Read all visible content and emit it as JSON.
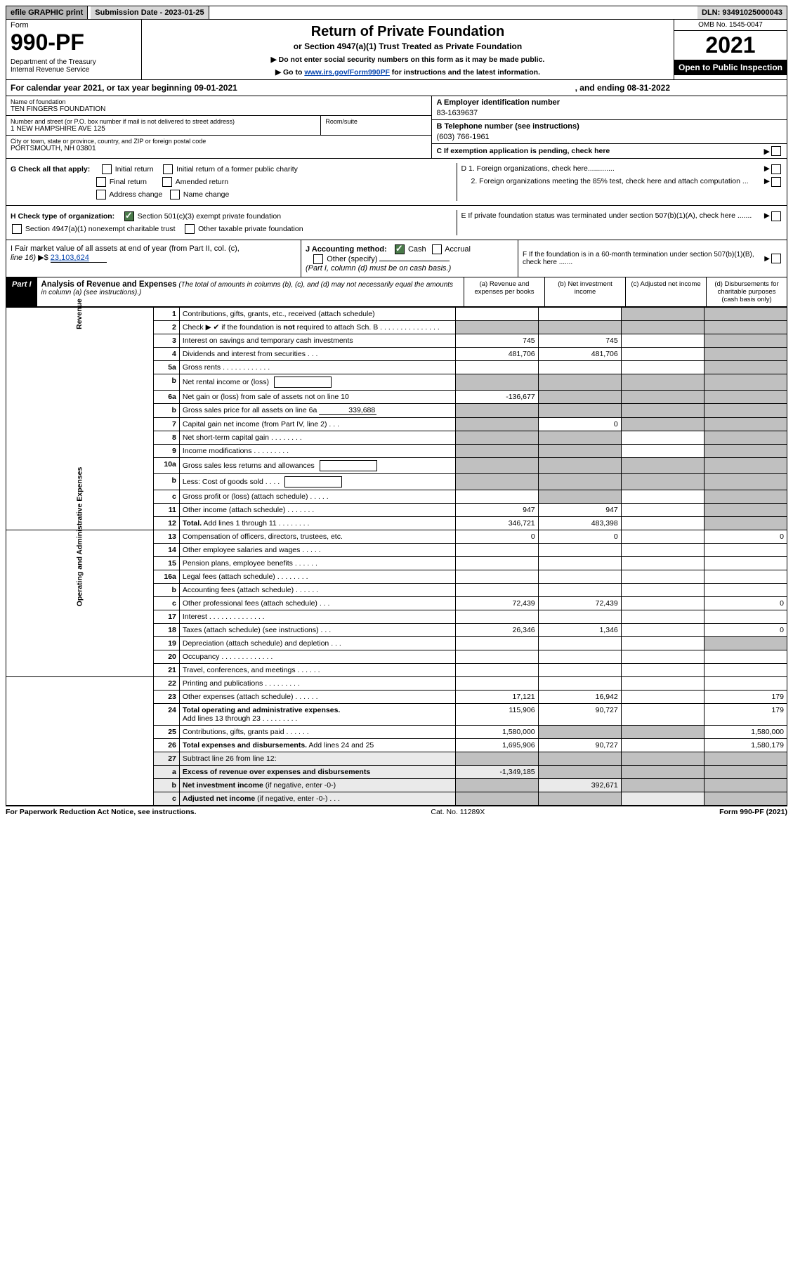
{
  "header_bar": {
    "efile": "efile GRAPHIC print",
    "sub": "Submission Date - 2023-01-25",
    "dln": "DLN: 93491025000043"
  },
  "form_box": {
    "form_word": "Form",
    "code": "990-PF",
    "dept": "Department of the Treasury",
    "irs": "Internal Revenue Service"
  },
  "title": {
    "main": "Return of Private Foundation",
    "sub": "or Section 4947(a)(1) Trust Treated as Private Foundation",
    "instr1": "▶ Do not enter social security numbers on this form as it may be made public.",
    "instr2_pre": "▶ Go to ",
    "instr2_link": "www.irs.gov/Form990PF",
    "instr2_post": " for instructions and the latest information."
  },
  "year_box": {
    "omb": "OMB No. 1545-0047",
    "yr": "2021",
    "open": "Open to Public Inspection"
  },
  "cal": {
    "pre": "For calendar year 2021, or tax year beginning 09-01-2021",
    "mid": ", and ending 08-31-2022"
  },
  "A": {
    "lbl": "Name of foundation",
    "val": "TEN FINGERS FOUNDATION",
    "ein_lbl": "A Employer identification number",
    "ein": "83-1639637"
  },
  "B": {
    "addr_lbl": "Number and street (or P.O. box number if mail is not delivered to street address)",
    "addr": "1 NEW HAMPSHIRE AVE 125",
    "room_lbl": "Room/suite",
    "tel_lbl": "B Telephone number (see instructions)",
    "tel": "(603) 766-1961"
  },
  "C": {
    "city_lbl": "City or town, state or province, country, and ZIP or foreign postal code",
    "city": "PORTSMOUTH, NH  03801",
    "c_lbl": "C If exemption application is pending, check here"
  },
  "G": {
    "lbl": "G Check all that apply:",
    "opts": [
      "Initial return",
      "Final return",
      "Address change",
      "Initial return of a former public charity",
      "Amended return",
      "Name change"
    ]
  },
  "D": {
    "d1": "D 1. Foreign organizations, check here.............",
    "d2": "2. Foreign organizations meeting the 85% test, check here and attach computation ..."
  },
  "E": {
    "lbl": "E  If private foundation status was terminated under section 507(b)(1)(A), check here ......."
  },
  "H": {
    "lbl": "H Check type of organization:",
    "o1": "Section 501(c)(3) exempt private foundation",
    "o2": "Section 4947(a)(1) nonexempt charitable trust",
    "o3": "Other taxable private foundation"
  },
  "I": {
    "lbl": "I Fair market value of all assets at end of year (from Part II, col. (c),",
    "line": "line 16)",
    "arrow": "▶$",
    "val": "23,103,624"
  },
  "J": {
    "lbl": "J Accounting method:",
    "cash": "Cash",
    "accr": "Accrual",
    "other": "Other (specify)",
    "note": "(Part I, column (d) must be on cash basis.)"
  },
  "F": {
    "lbl": "F  If the foundation is in a 60-month termination under section 507(b)(1)(B), check here ......."
  },
  "part1": {
    "lbl": "Part I",
    "title": "Analysis of Revenue and Expenses",
    "note": "(The total of amounts in columns (b), (c), and (d) may not necessarily equal the amounts in column (a) (see instructions).)",
    "cols": {
      "a": "(a)    Revenue and expenses per books",
      "b": "(b)    Net investment income",
      "c": "(c)    Adjusted net income",
      "d": "(d)    Disbursements for charitable purposes (cash basis only)"
    }
  },
  "vtabs": {
    "rev": "Revenue",
    "exp": "Operating and Administrative Expenses"
  },
  "rows": [
    {
      "n": "1",
      "t": "Contributions, gifts, grants, etc., received (attach schedule)",
      "a": "",
      "b": "",
      "c": "g",
      "d": "g"
    },
    {
      "n": "2",
      "t": "Check ▶ ✔ if the foundation is <b>not</b> required to attach Sch. B      .   .   .   .   .   .   .   .   .   .   .   .   .   .   .",
      "a": "g",
      "b": "g",
      "c": "g",
      "d": "g"
    },
    {
      "n": "3",
      "t": "Interest on savings and temporary cash investments",
      "a": "745",
      "b": "745",
      "c": "",
      "d": "g"
    },
    {
      "n": "4",
      "t": "Dividends and interest from securities    .   .   .",
      "a": "481,706",
      "b": "481,706",
      "c": "",
      "d": "g"
    },
    {
      "n": "5a",
      "t": "Gross rents      .   .   .   .   .   .   .   .   .   .   .   .",
      "a": "",
      "b": "",
      "c": "",
      "d": "g"
    },
    {
      "n": "b",
      "t": "Net rental income or (loss) <span class='smallbox'></span>",
      "a": "g",
      "b": "g",
      "c": "g",
      "d": "g"
    },
    {
      "n": "6a",
      "t": "Net gain or (loss) from sale of assets not on line 10",
      "a": "-136,677",
      "b": "g",
      "c": "g",
      "d": "g"
    },
    {
      "n": "b",
      "t": "Gross sales price for all assets on line 6a <span class='underline-val' style='text-align:right;padding-right:2px'>339,688</span>",
      "a": "g",
      "b": "g",
      "c": "g",
      "d": "g"
    },
    {
      "n": "7",
      "t": "Capital gain net income (from Part IV, line 2)    .   .   .",
      "a": "g",
      "b": "0",
      "c": "g",
      "d": "g"
    },
    {
      "n": "8",
      "t": "Net short-term capital gain   .   .   .   .   .   .   .   .",
      "a": "g",
      "b": "g",
      "c": "",
      "d": "g"
    },
    {
      "n": "9",
      "t": "Income modifications   .   .   .   .   .   .   .   .   .",
      "a": "g",
      "b": "g",
      "c": "",
      "d": "g"
    },
    {
      "n": "10a",
      "t": "Gross sales less returns and allowances <span class='smallbox'></span>",
      "a": "g",
      "b": "g",
      "c": "g",
      "d": "g"
    },
    {
      "n": "b",
      "t": "Less: Cost of goods sold    .   .   .   . <span class='smallbox'></span>",
      "a": "g",
      "b": "g",
      "c": "g",
      "d": "g"
    },
    {
      "n": "c",
      "t": "Gross profit or (loss) (attach schedule)    .   .   .   .   .",
      "a": "",
      "b": "g",
      "c": "",
      "d": "g"
    },
    {
      "n": "11",
      "t": "Other income (attach schedule)    .   .   .   .   .   .   .",
      "a": "947",
      "b": "947",
      "c": "",
      "d": "g"
    },
    {
      "n": "12",
      "t": "<b>Total.</b> Add lines 1 through 11   .   .   .   .   .   .   .   .",
      "a": "346,721",
      "b": "483,398",
      "c": "",
      "d": "g"
    },
    {
      "n": "13",
      "t": "Compensation of officers, directors, trustees, etc.",
      "a": "0",
      "b": "0",
      "c": "",
      "d": "0"
    },
    {
      "n": "14",
      "t": "Other employee salaries and wages    .   .   .   .   .",
      "a": "",
      "b": "",
      "c": "",
      "d": ""
    },
    {
      "n": "15",
      "t": "Pension plans, employee benefits   .   .   .   .   .   .",
      "a": "",
      "b": "",
      "c": "",
      "d": ""
    },
    {
      "n": "16a",
      "t": "Legal fees (attach schedule)  .   .   .   .   .   .   .   .",
      "a": "",
      "b": "",
      "c": "",
      "d": ""
    },
    {
      "n": "b",
      "t": "Accounting fees (attach schedule)   .   .   .   .   .   .",
      "a": "",
      "b": "",
      "c": "",
      "d": ""
    },
    {
      "n": "c",
      "t": "Other professional fees (attach schedule)    .   .   .",
      "a": "72,439",
      "b": "72,439",
      "c": "",
      "d": "0"
    },
    {
      "n": "17",
      "t": "Interest  .   .   .   .   .   .   .   .   .   .   .   .   .   .",
      "a": "",
      "b": "",
      "c": "",
      "d": ""
    },
    {
      "n": "18",
      "t": "Taxes (attach schedule) (see instructions)    .   .   .",
      "a": "26,346",
      "b": "1,346",
      "c": "",
      "d": "0"
    },
    {
      "n": "19",
      "t": "Depreciation (attach schedule) and depletion    .   .   .",
      "a": "",
      "b": "",
      "c": "",
      "d": "g"
    },
    {
      "n": "20",
      "t": "Occupancy  .   .   .   .   .   .   .   .   .   .   .   .   .",
      "a": "",
      "b": "",
      "c": "",
      "d": ""
    },
    {
      "n": "21",
      "t": "Travel, conferences, and meetings   .   .   .   .   .   .",
      "a": "",
      "b": "",
      "c": "",
      "d": ""
    },
    {
      "n": "22",
      "t": "Printing and publications   .   .   .   .   .   .   .   .   .",
      "a": "",
      "b": "",
      "c": "",
      "d": ""
    },
    {
      "n": "23",
      "t": "Other expenses (attach schedule)   .   .   .   .   .   .",
      "a": "17,121",
      "b": "16,942",
      "c": "",
      "d": "179"
    },
    {
      "n": "24",
      "t": "<b>Total operating and administrative expenses.</b><br>Add lines 13 through 23   .   .   .   .   .   .   .   .   .",
      "a": "115,906",
      "b": "90,727",
      "c": "",
      "d": "179"
    },
    {
      "n": "25",
      "t": "Contributions, gifts, grants paid    .   .   .   .   .   .",
      "a": "1,580,000",
      "b": "g",
      "c": "g",
      "d": "1,580,000"
    },
    {
      "n": "26",
      "t": "<b>Total expenses and disbursements.</b> Add lines 24 and 25",
      "a": "1,695,906",
      "b": "90,727",
      "c": "",
      "d": "1,580,179"
    },
    {
      "n": "27",
      "sh": true,
      "t": "Subtract line 26 from line 12:",
      "a": "g",
      "b": "g",
      "c": "g",
      "d": "g"
    },
    {
      "n": "a",
      "sh": true,
      "t": "<b>Excess of revenue over expenses and disbursements</b>",
      "a": "-1,349,185",
      "b": "g",
      "c": "g",
      "d": "g"
    },
    {
      "n": "b",
      "sh": true,
      "t": "<b>Net investment income</b> (if negative, enter -0-)",
      "a": "g",
      "b": "392,671",
      "c": "g",
      "d": "g"
    },
    {
      "n": "c",
      "sh": true,
      "t": "<b>Adjusted net income</b> (if negative, enter -0-)   .   .   .",
      "a": "g",
      "b": "g",
      "c": "",
      "d": "g"
    }
  ],
  "footer": {
    "l": "For Paperwork Reduction Act Notice, see instructions.",
    "c": "Cat. No. 11289X",
    "r": "Form 990-PF (2021)"
  }
}
